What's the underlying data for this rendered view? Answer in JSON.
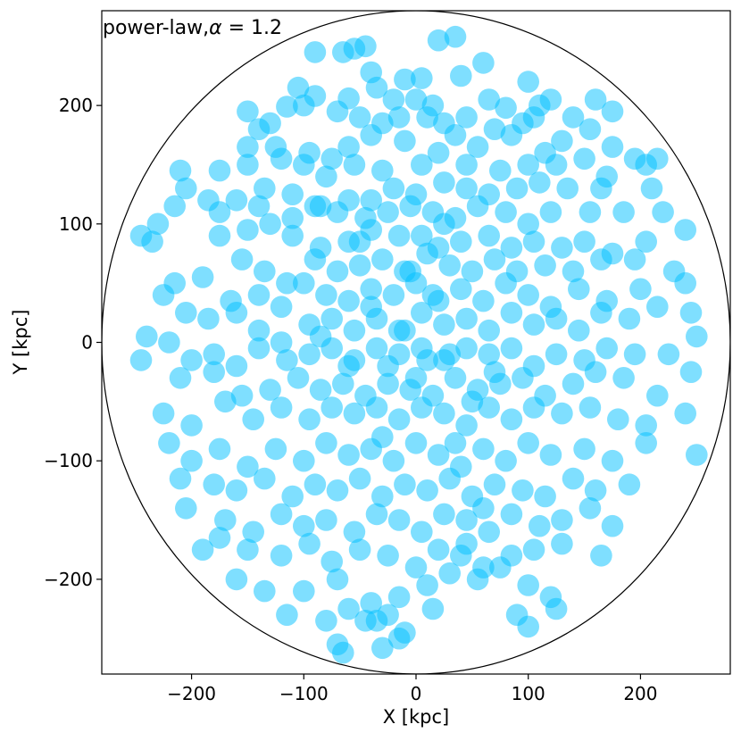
{
  "chart_data": {
    "type": "scatter",
    "title": "power-law,",
    "title_symbol": "α",
    "title_value": " = 1.2",
    "xlabel": "X [kpc]",
    "ylabel": "Y [kpc]",
    "xlim": [
      -280,
      280
    ],
    "ylim": [
      -280,
      280
    ],
    "xticks": [
      -200,
      -100,
      0,
      100,
      200
    ],
    "yticks": [
      -200,
      -100,
      0,
      100,
      200
    ],
    "xtick_labels": [
      "−200",
      "−100",
      "0",
      "100",
      "200"
    ],
    "ytick_labels": [
      "−200",
      "−100",
      "0",
      "100",
      "200"
    ],
    "boundary_circle_radius": 280,
    "marker_color": "#00bfff",
    "marker_alpha": 0.5,
    "marker_radius_kpc": 9.5,
    "grid": false,
    "points": [
      [
        -45,
        250
      ],
      [
        -55,
        248
      ],
      [
        -65,
        245
      ],
      [
        -90,
        245
      ],
      [
        20,
        255
      ],
      [
        35,
        258
      ],
      [
        60,
        236
      ],
      [
        -40,
        228
      ],
      [
        -10,
        222
      ],
      [
        5,
        223
      ],
      [
        40,
        225
      ],
      [
        -105,
        215
      ],
      [
        -115,
        199
      ],
      [
        -90,
        208
      ],
      [
        -60,
        206
      ],
      [
        -35,
        215
      ],
      [
        -20,
        205
      ],
      [
        0,
        205
      ],
      [
        15,
        200
      ],
      [
        65,
        205
      ],
      [
        80,
        198
      ],
      [
        100,
        220
      ],
      [
        110,
        200
      ],
      [
        120,
        205
      ],
      [
        160,
        205
      ],
      [
        175,
        195
      ],
      [
        -150,
        195
      ],
      [
        -130,
        185
      ],
      [
        -140,
        180
      ],
      [
        -100,
        200
      ],
      [
        -70,
        195
      ],
      [
        -50,
        190
      ],
      [
        -30,
        185
      ],
      [
        -15,
        190
      ],
      [
        10,
        190
      ],
      [
        25,
        185
      ],
      [
        45,
        190
      ],
      [
        70,
        180
      ],
      [
        95,
        185
      ],
      [
        105,
        190
      ],
      [
        140,
        190
      ],
      [
        155,
        180
      ],
      [
        -150,
        165
      ],
      [
        -125,
        165
      ],
      [
        -95,
        160
      ],
      [
        -75,
        155
      ],
      [
        -60,
        165
      ],
      [
        -40,
        175
      ],
      [
        -10,
        170
      ],
      [
        20,
        160
      ],
      [
        35,
        175
      ],
      [
        55,
        165
      ],
      [
        85,
        175
      ],
      [
        115,
        160
      ],
      [
        130,
        170
      ],
      [
        175,
        165
      ],
      [
        195,
        155
      ],
      [
        205,
        150
      ],
      [
        215,
        155
      ],
      [
        -210,
        145
      ],
      [
        -175,
        145
      ],
      [
        -150,
        150
      ],
      [
        -120,
        155
      ],
      [
        -100,
        150
      ],
      [
        -80,
        140
      ],
      [
        -55,
        150
      ],
      [
        -30,
        145
      ],
      [
        5,
        150
      ],
      [
        45,
        150
      ],
      [
        75,
        145
      ],
      [
        100,
        150
      ],
      [
        125,
        150
      ],
      [
        150,
        155
      ],
      [
        170,
        140
      ],
      [
        -205,
        130
      ],
      [
        -185,
        120
      ],
      [
        -160,
        120
      ],
      [
        -135,
        130
      ],
      [
        -110,
        125
      ],
      [
        -85,
        115
      ],
      [
        -60,
        120
      ],
      [
        -40,
        120
      ],
      [
        -20,
        130
      ],
      [
        0,
        125
      ],
      [
        25,
        135
      ],
      [
        45,
        130
      ],
      [
        65,
        125
      ],
      [
        90,
        130
      ],
      [
        110,
        135
      ],
      [
        135,
        130
      ],
      [
        165,
        130
      ],
      [
        210,
        130
      ],
      [
        -230,
        100
      ],
      [
        -215,
        115
      ],
      [
        -175,
        110
      ],
      [
        -140,
        115
      ],
      [
        -110,
        105
      ],
      [
        -90,
        115
      ],
      [
        -70,
        110
      ],
      [
        -45,
        105
      ],
      [
        -25,
        110
      ],
      [
        -5,
        115
      ],
      [
        15,
        110
      ],
      [
        35,
        105
      ],
      [
        55,
        115
      ],
      [
        80,
        110
      ],
      [
        100,
        100
      ],
      [
        120,
        110
      ],
      [
        155,
        110
      ],
      [
        185,
        110
      ],
      [
        220,
        110
      ],
      [
        -245,
        90
      ],
      [
        -235,
        85
      ],
      [
        -175,
        90
      ],
      [
        -150,
        95
      ],
      [
        -130,
        100
      ],
      [
        -110,
        90
      ],
      [
        -85,
        80
      ],
      [
        -60,
        85
      ],
      [
        -40,
        95
      ],
      [
        -15,
        90
      ],
      [
        5,
        90
      ],
      [
        20,
        80
      ],
      [
        40,
        85
      ],
      [
        65,
        90
      ],
      [
        85,
        80
      ],
      [
        105,
        85
      ],
      [
        130,
        80
      ],
      [
        150,
        85
      ],
      [
        175,
        75
      ],
      [
        205,
        85
      ],
      [
        240,
        95
      ],
      [
        -155,
        70
      ],
      [
        -135,
        60
      ],
      [
        -115,
        50
      ],
      [
        -90,
        70
      ],
      [
        -70,
        60
      ],
      [
        -50,
        65
      ],
      [
        -30,
        70
      ],
      [
        -10,
        60
      ],
      [
        10,
        75
      ],
      [
        30,
        65
      ],
      [
        50,
        60
      ],
      [
        70,
        70
      ],
      [
        90,
        60
      ],
      [
        115,
        65
      ],
      [
        140,
        60
      ],
      [
        165,
        70
      ],
      [
        195,
        70
      ],
      [
        230,
        60
      ],
      [
        -215,
        50
      ],
      [
        -190,
        55
      ],
      [
        -165,
        35
      ],
      [
        -140,
        40
      ],
      [
        -120,
        30
      ],
      [
        -100,
        50
      ],
      [
        -80,
        40
      ],
      [
        -60,
        35
      ],
      [
        -40,
        45
      ],
      [
        -20,
        40
      ],
      [
        0,
        50
      ],
      [
        20,
        35
      ],
      [
        40,
        45
      ],
      [
        60,
        35
      ],
      [
        80,
        50
      ],
      [
        100,
        40
      ],
      [
        120,
        30
      ],
      [
        145,
        45
      ],
      [
        170,
        35
      ],
      [
        200,
        45
      ],
      [
        240,
        50
      ],
      [
        -225,
        40
      ],
      [
        -205,
        25
      ],
      [
        -185,
        20
      ],
      [
        -160,
        25
      ],
      [
        -140,
        10
      ],
      [
        -120,
        0
      ],
      [
        -95,
        15
      ],
      [
        -75,
        20
      ],
      [
        -55,
        10
      ],
      [
        -35,
        20
      ],
      [
        -15,
        10
      ],
      [
        5,
        25
      ],
      [
        25,
        15
      ],
      [
        45,
        20
      ],
      [
        65,
        10
      ],
      [
        85,
        25
      ],
      [
        105,
        15
      ],
      [
        125,
        20
      ],
      [
        145,
        10
      ],
      [
        165,
        25
      ],
      [
        190,
        20
      ],
      [
        215,
        30
      ],
      [
        245,
        25
      ],
      [
        -240,
        5
      ],
      [
        -220,
        0
      ],
      [
        -200,
        -15
      ],
      [
        -180,
        -10
      ],
      [
        -160,
        -20
      ],
      [
        -140,
        -5
      ],
      [
        -115,
        -15
      ],
      [
        -95,
        -10
      ],
      [
        -75,
        -5
      ],
      [
        -55,
        -15
      ],
      [
        -35,
        -5
      ],
      [
        -15,
        -10
      ],
      [
        5,
        -5
      ],
      [
        25,
        -15
      ],
      [
        45,
        -5
      ],
      [
        65,
        -10
      ],
      [
        85,
        -5
      ],
      [
        105,
        -20
      ],
      [
        125,
        -10
      ],
      [
        150,
        -15
      ],
      [
        170,
        -5
      ],
      [
        195,
        -10
      ],
      [
        225,
        -10
      ],
      [
        250,
        5
      ],
      [
        -245,
        -15
      ],
      [
        -210,
        -30
      ],
      [
        -180,
        -25
      ],
      [
        -155,
        -45
      ],
      [
        -130,
        -40
      ],
      [
        -105,
        -30
      ],
      [
        -85,
        -40
      ],
      [
        -65,
        -35
      ],
      [
        -45,
        -45
      ],
      [
        -25,
        -35
      ],
      [
        -5,
        -40
      ],
      [
        15,
        -45
      ],
      [
        35,
        -30
      ],
      [
        55,
        -40
      ],
      [
        75,
        -35
      ],
      [
        95,
        -30
      ],
      [
        115,
        -45
      ],
      [
        140,
        -35
      ],
      [
        160,
        -25
      ],
      [
        185,
        -30
      ],
      [
        215,
        -45
      ],
      [
        245,
        -25
      ],
      [
        -225,
        -60
      ],
      [
        -200,
        -70
      ],
      [
        -170,
        -50
      ],
      [
        -145,
        -65
      ],
      [
        -120,
        -55
      ],
      [
        -95,
        -65
      ],
      [
        -75,
        -55
      ],
      [
        -55,
        -60
      ],
      [
        -35,
        -55
      ],
      [
        -15,
        -65
      ],
      [
        5,
        -55
      ],
      [
        25,
        -60
      ],
      [
        45,
        -70
      ],
      [
        65,
        -55
      ],
      [
        85,
        -65
      ],
      [
        105,
        -55
      ],
      [
        130,
        -60
      ],
      [
        155,
        -55
      ],
      [
        180,
        -65
      ],
      [
        205,
        -70
      ],
      [
        240,
        -60
      ],
      [
        -220,
        -85
      ],
      [
        -200,
        -100
      ],
      [
        -175,
        -90
      ],
      [
        -150,
        -105
      ],
      [
        -125,
        -90
      ],
      [
        -100,
        -100
      ],
      [
        -80,
        -85
      ],
      [
        -60,
        -95
      ],
      [
        -40,
        -90
      ],
      [
        -20,
        -100
      ],
      [
        0,
        -85
      ],
      [
        20,
        -95
      ],
      [
        40,
        -105
      ],
      [
        60,
        -90
      ],
      [
        80,
        -100
      ],
      [
        100,
        -85
      ],
      [
        120,
        -95
      ],
      [
        150,
        -90
      ],
      [
        175,
        -100
      ],
      [
        205,
        -85
      ],
      [
        250,
        -95
      ],
      [
        -210,
        -115
      ],
      [
        -180,
        -120
      ],
      [
        -160,
        -125
      ],
      [
        -135,
        -115
      ],
      [
        -110,
        -130
      ],
      [
        -90,
        -120
      ],
      [
        -70,
        -125
      ],
      [
        -50,
        -115
      ],
      [
        -30,
        -130
      ],
      [
        -10,
        -120
      ],
      [
        10,
        -125
      ],
      [
        30,
        -115
      ],
      [
        50,
        -130
      ],
      [
        70,
        -120
      ],
      [
        95,
        -125
      ],
      [
        115,
        -130
      ],
      [
        140,
        -115
      ],
      [
        160,
        -125
      ],
      [
        190,
        -120
      ],
      [
        -205,
        -140
      ],
      [
        -170,
        -150
      ],
      [
        -145,
        -160
      ],
      [
        -120,
        -145
      ],
      [
        -100,
        -155
      ],
      [
        -80,
        -150
      ],
      [
        -55,
        -160
      ],
      [
        -35,
        -145
      ],
      [
        -15,
        -150
      ],
      [
        5,
        -160
      ],
      [
        25,
        -145
      ],
      [
        45,
        -150
      ],
      [
        65,
        -160
      ],
      [
        85,
        -145
      ],
      [
        110,
        -155
      ],
      [
        130,
        -150
      ],
      [
        155,
        -140
      ],
      [
        175,
        -155
      ],
      [
        -175,
        -165
      ],
      [
        -150,
        -175
      ],
      [
        -120,
        -180
      ],
      [
        -95,
        -170
      ],
      [
        -75,
        -185
      ],
      [
        -50,
        -175
      ],
      [
        -25,
        -180
      ],
      [
        0,
        -190
      ],
      [
        20,
        -175
      ],
      [
        40,
        -180
      ],
      [
        60,
        -190
      ],
      [
        85,
        -180
      ],
      [
        105,
        -175
      ],
      [
        130,
        -170
      ],
      [
        165,
        -180
      ],
      [
        -190,
        -175
      ],
      [
        -160,
        -200
      ],
      [
        -135,
        -210
      ],
      [
        -100,
        -210
      ],
      [
        -70,
        -200
      ],
      [
        -40,
        -220
      ],
      [
        -15,
        -215
      ],
      [
        10,
        -205
      ],
      [
        30,
        -195
      ],
      [
        55,
        -200
      ],
      [
        75,
        -190
      ],
      [
        100,
        -205
      ],
      [
        120,
        -215
      ],
      [
        -115,
        -230
      ],
      [
        -80,
        -235
      ],
      [
        -60,
        -225
      ],
      [
        -45,
        -235
      ],
      [
        -25,
        -230
      ],
      [
        -10,
        -245
      ],
      [
        15,
        -225
      ],
      [
        90,
        -230
      ],
      [
        100,
        -240
      ],
      [
        125,
        -225
      ],
      [
        -70,
        -255
      ],
      [
        -65,
        -262
      ],
      [
        -30,
        -258
      ],
      [
        -35,
        -235
      ],
      [
        -15,
        -250
      ],
      [
        45,
        -170
      ],
      [
        60,
        -140
      ],
      [
        -30,
        -80
      ],
      [
        0,
        -30
      ],
      [
        -10,
        10
      ],
      [
        10,
        -15
      ],
      [
        -25,
        -20
      ],
      [
        30,
        -10
      ],
      [
        -40,
        30
      ],
      [
        15,
        40
      ],
      [
        -60,
        -20
      ],
      [
        50,
        -50
      ],
      [
        -5,
        60
      ],
      [
        35,
        -85
      ],
      [
        -85,
        5
      ],
      [
        70,
        -25
      ],
      [
        -50,
        85
      ],
      [
        25,
        100
      ]
    ]
  }
}
